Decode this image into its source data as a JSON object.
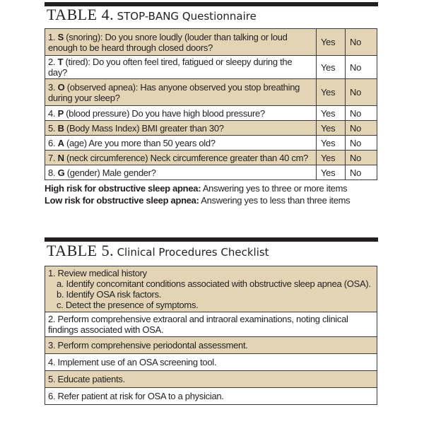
{
  "table4": {
    "number": "TABLE 4.",
    "title": "STOP-BANG Questionnaire",
    "rows": [
      {
        "num": "1.",
        "key": "S",
        "text": "(snoring):  Do you snore loudly (louder than talking or loud enough to be heard through closed doors?",
        "yes": "Yes",
        "no": "No"
      },
      {
        "num": "2.",
        "key": "T",
        "text": "(tired): Do you often feel tired, fatigued or sleepy during the day?",
        "yes": "Yes",
        "no": "No"
      },
      {
        "num": "3.",
        "key": "O",
        "text": "(observed apnea):  Has anyone observed you stop breathing during your sleep?",
        "yes": "Yes",
        "no": "No"
      },
      {
        "num": "4.",
        "key": "P",
        "text": "(blood pressure) Do you have high blood pressure?",
        "yes": "Yes",
        "no": "No"
      },
      {
        "num": "5.",
        "key": "B",
        "text": "(Body Mass Index) BMI greater than 30?",
        "yes": "Yes",
        "no": "No"
      },
      {
        "num": "6.",
        "key": "A",
        "text": "(age) Are you more than 50 years old?",
        "yes": "Yes",
        "no": "No"
      },
      {
        "num": "7.",
        "key": "N",
        "text": "(neck circumference) Neck circumference greater than 40 cm?",
        "yes": "Yes",
        "no": "No"
      },
      {
        "num": "8.",
        "key": "G",
        "text": "(gender) Male gender?",
        "yes": "Yes",
        "no": "No"
      }
    ],
    "high_label": "High risk for obstructive sleep apnea:",
    "high_text": " Answering yes to three or more items",
    "low_label": "Low risk for obstructive sleep apnea:",
    "low_text": " Answering yes to less than three items"
  },
  "table5": {
    "number": "TABLE 5.",
    "title": "Clinical Procedures Checklist",
    "item1": "1. Review medical history",
    "item1_subs": [
      "a. Identify concomitant conditions associated with obstructive sleep apnea (OSA).",
      "b. Identify OSA risk factors.",
      "c. Detect the presence of symptoms."
    ],
    "items": [
      "2. Perform comprehensive extraoral and intraoral examinations, noting clinical findings associated with OSA.",
      "3. Perform comprehensive periodontal assessment.",
      "4. Implement use of an OSA screening tool.",
      "5. Educate patients.",
      "6. Refer patient at risk for OSA to a physician."
    ]
  },
  "colors": {
    "row_shade": "#e4d4b6",
    "rule": "#231f20"
  }
}
